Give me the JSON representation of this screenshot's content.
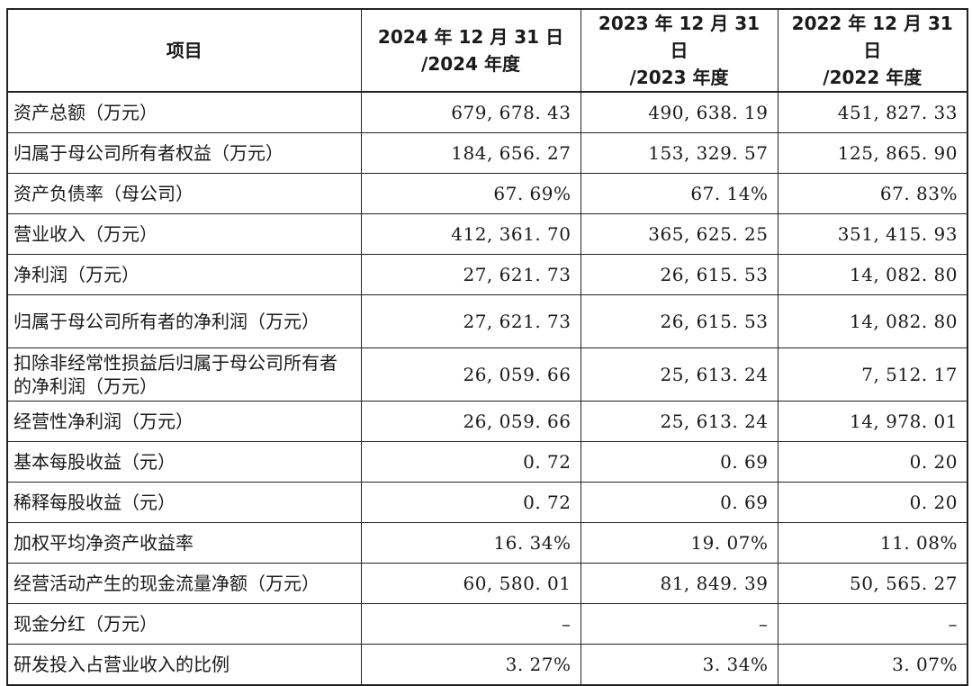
{
  "table": {
    "headers": [
      {
        "line1": "项目",
        "line2": ""
      },
      {
        "line1": "2024 年 12 月 31 日",
        "line2": "/2024 年度"
      },
      {
        "line1": "2023 年 12 月 31 日",
        "line2": "/2023 年度"
      },
      {
        "line1": "2022 年 12 月 31 日",
        "line2": "/2022 年度"
      }
    ],
    "rows": [
      {
        "label": "资产总额（万元）",
        "v2024": "679, 678. 43",
        "v2023": "490, 638. 19",
        "v2022": "451, 827. 33"
      },
      {
        "label": "归属于母公司所有者权益（万元）",
        "v2024": "184, 656. 27",
        "v2023": "153, 329. 57",
        "v2022": "125, 865. 90"
      },
      {
        "label": "资产负债率（母公司）",
        "v2024": "67. 69%",
        "v2023": "67. 14%",
        "v2022": "67. 83%"
      },
      {
        "label": "营业收入（万元）",
        "v2024": "412, 361. 70",
        "v2023": "365, 625. 25",
        "v2022": "351, 415. 93"
      },
      {
        "label": "净利润（万元）",
        "v2024": "27, 621. 73",
        "v2023": "26, 615. 53",
        "v2022": "14, 082. 80"
      },
      {
        "label": "归属于母公司所有者的净利润（万元）",
        "v2024": "27, 621. 73",
        "v2023": "26, 615. 53",
        "v2022": "14, 082. 80"
      },
      {
        "label": "扣除非经常性损益后归属于母公司所有者的净利润（万元）",
        "v2024": "26, 059. 66",
        "v2023": "25, 613. 24",
        "v2022": "7, 512. 17"
      },
      {
        "label": "经营性净利润（万元）",
        "v2024": "26, 059. 66",
        "v2023": "25, 613. 24",
        "v2022": "14, 978. 01"
      },
      {
        "label": "基本每股收益（元）",
        "v2024": "0. 72",
        "v2023": "0. 69",
        "v2022": "0. 20"
      },
      {
        "label": "稀释每股收益（元）",
        "v2024": "0. 72",
        "v2023": "0. 69",
        "v2022": "0. 20"
      },
      {
        "label": "加权平均净资产收益率",
        "v2024": "16. 34%",
        "v2023": "19. 07%",
        "v2022": "11. 08%"
      },
      {
        "label": "经营活动产生的现金流量净额（万元）",
        "v2024": "60, 580. 01",
        "v2023": "81, 849. 39",
        "v2022": "50, 565. 27"
      },
      {
        "label": "现金分红（万元）",
        "v2024": "–",
        "v2023": "–",
        "v2022": "–"
      },
      {
        "label": "研发投入占营业收入的比例",
        "v2024": "3. 27%",
        "v2023": "3. 34%",
        "v2022": "3. 07%"
      }
    ]
  }
}
